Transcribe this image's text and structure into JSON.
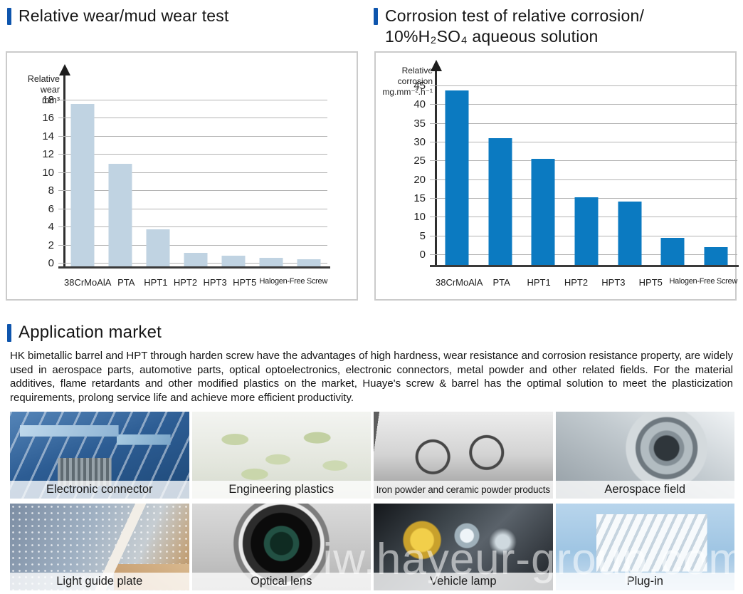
{
  "chart_data": [
    {
      "type": "bar",
      "title": "Relative wear/mud wear test",
      "ylabel": "Relative wear mm³",
      "ylabel_lines": [
        "Relative wear",
        "mm³"
      ],
      "categories": [
        "38CrMoAlA",
        "PTA",
        "HPT1",
        "HPT2",
        "HPT3",
        "HPT5",
        "Halogen-Free Screw"
      ],
      "values": [
        17.6,
        11,
        3.8,
        1.2,
        0.9,
        0.6,
        0.45
      ],
      "ylim": [
        0,
        18
      ],
      "ytick_step": 2,
      "grid": true,
      "legend": "none",
      "bar_color": "#c0d3e2",
      "axis_color": "#333333",
      "gridline_color": "#b3b3b3"
    },
    {
      "type": "bar",
      "title": "Corrosion test of relative corrosion/ 10%H₂SO₄ aqueous solution",
      "title_lines": [
        "Corrosion test of relative corrosion/",
        "10%H₂SO₄ aqueous solution"
      ],
      "ylabel": "Relative corrosion mg.mm⁻².h⁻¹",
      "ylabel_lines": [
        "Relative corrosion",
        "mg.mm⁻².h⁻¹"
      ],
      "categories": [
        "38CrMoAlA",
        "PTA",
        "HPT1",
        "HPT2",
        "HPT3",
        "HPT5",
        "Halogen-Free Screw"
      ],
      "values": [
        43.8,
        31.2,
        25.6,
        15.4,
        14.3,
        4.5,
        2
      ],
      "ylim": [
        0,
        45
      ],
      "ytick_step": 5,
      "grid": true,
      "legend": "none",
      "bar_color": "#0b7ac1",
      "axis_color": "#333333",
      "gridline_color": "#b3b3b3"
    }
  ],
  "application": {
    "title": "Application market",
    "paragraph": "HK bimetallic barrel and HPT through harden screw have the advantages of high hardness, wear resistance and corrosion resistance property, are widely used in aerospace parts, automotive parts, optical optoelectronics, electronic connectors, metal powder and other related fields. For the material additives, flame retardants and other modified plastics on the market, Huaye's screw & barrel has the optimal solution to meet the plasticization requirements, prolong service life and achieve more efficient productivity.",
    "tiles": [
      {
        "label": "Electronic connector"
      },
      {
        "label": "Engineering plastics"
      },
      {
        "label": "Iron powder and ceramic powder products"
      },
      {
        "label": "Aerospace field"
      },
      {
        "label": "Light guide plate"
      },
      {
        "label": "Optical lens"
      },
      {
        "label": "Vehicle lamp"
      },
      {
        "label": "Plug-in"
      }
    ]
  },
  "watermark": "iw.hayeur-group.com",
  "colors": {
    "accent": "#0e55ad",
    "left_bar_color": "#c0d3e2",
    "right_bar_color": "#0b7ac1"
  }
}
